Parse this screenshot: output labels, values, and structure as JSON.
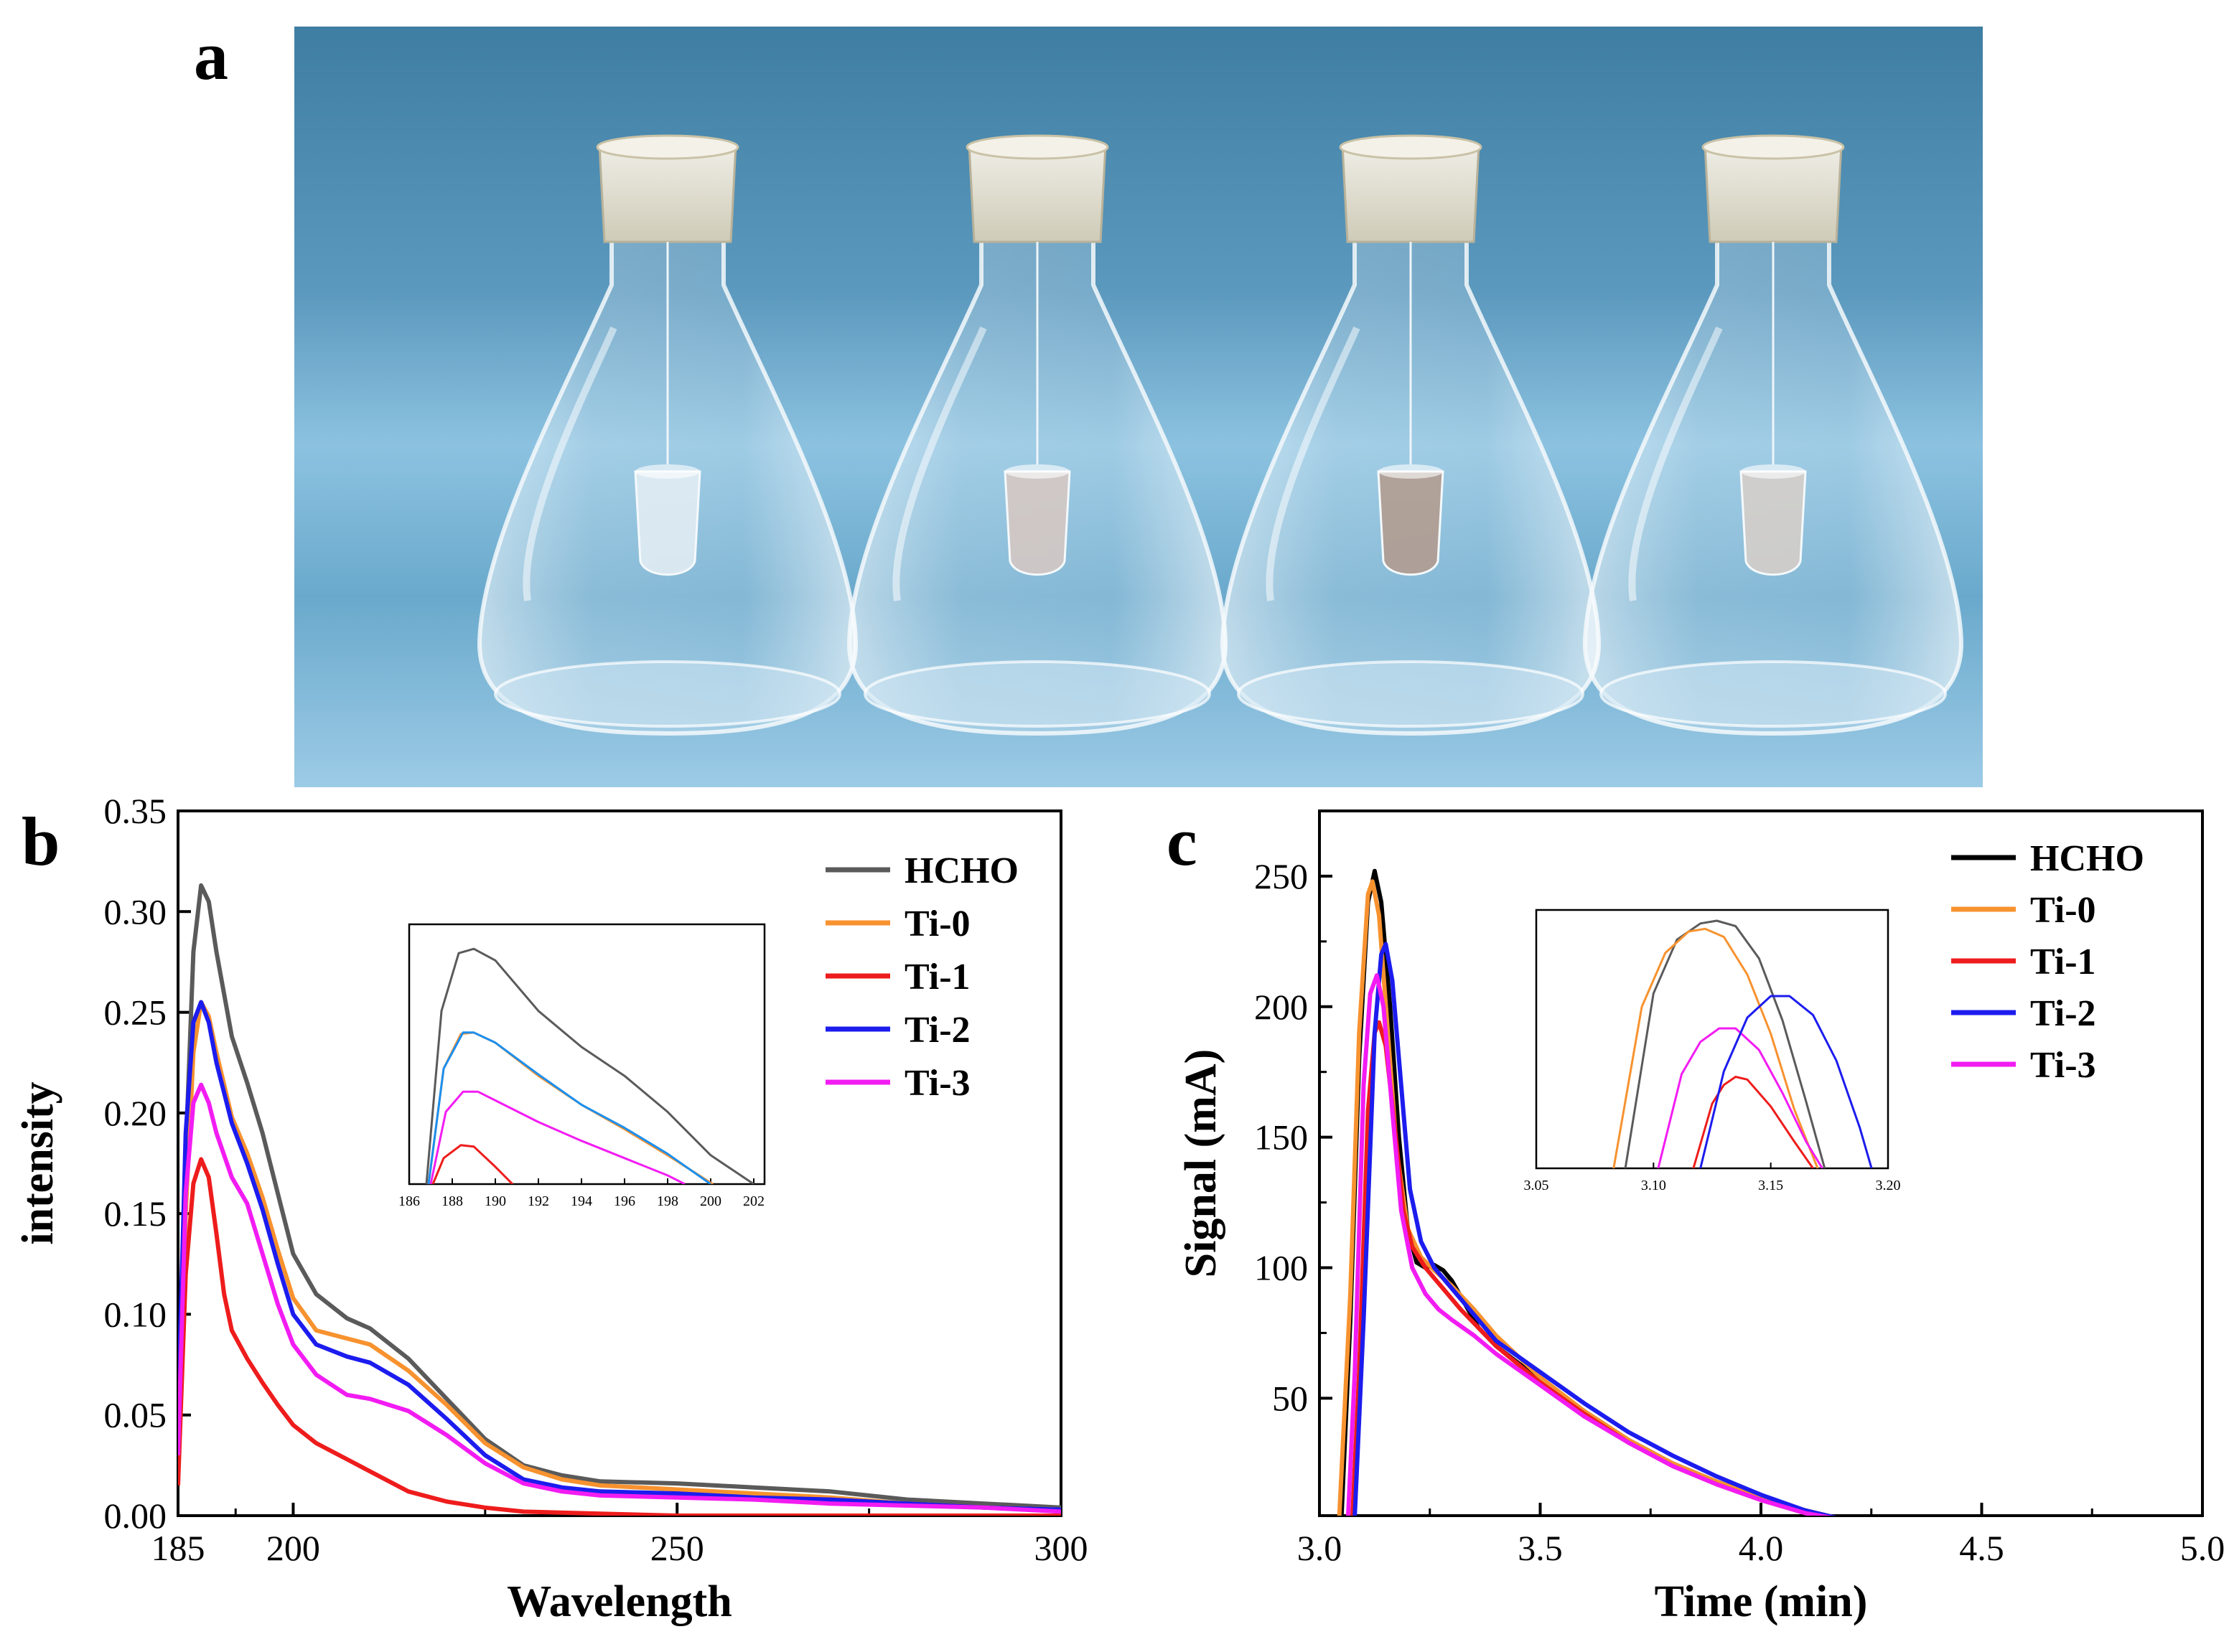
{
  "panels": {
    "a_label": "a",
    "b_label": "b",
    "c_label": "c"
  },
  "photo": {
    "flask_count": 4,
    "colors": {
      "bg_top": "#3f7ea3",
      "bg_mid": "#6aa9cc",
      "bg_bottom": "#9ccbe6",
      "glass": "#e8f2f8"
    }
  },
  "chart_data": [
    {
      "id": "b",
      "type": "line",
      "title": "",
      "xlabel": "Wavelength",
      "ylabel": "intensity",
      "xlim": [
        185,
        300
      ],
      "ylim": [
        0,
        0.35
      ],
      "xticks": [
        185,
        200,
        250,
        300
      ],
      "xtick_labels": [
        "185",
        "200",
        "250",
        "300"
      ],
      "yticks": [
        0.0,
        0.05,
        0.1,
        0.15,
        0.2,
        0.25,
        0.3,
        0.35
      ],
      "ytick_labels": [
        "0.00",
        "0.05",
        "0.10",
        "0.15",
        "0.20",
        "0.25",
        "0.30",
        "0.35"
      ],
      "legend": "top-right",
      "series": [
        {
          "name": "HCHO",
          "color": "#5a5a5a",
          "x": [
            185,
            186,
            187,
            188,
            189,
            190,
            192,
            194,
            196,
            198,
            200,
            203,
            207,
            210,
            215,
            220,
            225,
            230,
            235,
            240,
            250,
            260,
            270,
            280,
            290,
            300
          ],
          "y": [
            0.02,
            0.18,
            0.28,
            0.313,
            0.305,
            0.28,
            0.238,
            0.215,
            0.19,
            0.16,
            0.13,
            0.11,
            0.098,
            0.093,
            0.078,
            0.058,
            0.038,
            0.025,
            0.02,
            0.017,
            0.016,
            0.014,
            0.012,
            0.008,
            0.006,
            0.004
          ]
        },
        {
          "name": "Ti-0",
          "color": "#f7922f",
          "x": [
            185,
            186,
            187,
            188,
            189,
            190,
            192,
            194,
            196,
            198,
            200,
            203,
            207,
            210,
            215,
            220,
            225,
            230,
            235,
            240,
            250,
            260,
            270,
            280,
            290,
            300
          ],
          "y": [
            0.02,
            0.15,
            0.23,
            0.255,
            0.248,
            0.23,
            0.198,
            0.18,
            0.158,
            0.132,
            0.108,
            0.092,
            0.088,
            0.085,
            0.072,
            0.055,
            0.036,
            0.024,
            0.018,
            0.015,
            0.013,
            0.011,
            0.009,
            0.006,
            0.004,
            0.003
          ]
        },
        {
          "name": "Ti-1",
          "color": "#ee1c1c",
          "x": [
            185,
            186,
            187,
            188,
            189,
            190,
            191,
            192,
            194,
            196,
            198,
            200,
            203,
            207,
            210,
            215,
            220,
            225,
            230,
            240,
            250,
            260,
            300
          ],
          "y": [
            0.015,
            0.12,
            0.165,
            0.177,
            0.168,
            0.14,
            0.11,
            0.092,
            0.078,
            0.066,
            0.055,
            0.045,
            0.036,
            0.028,
            0.022,
            0.012,
            0.007,
            0.004,
            0.002,
            0.001,
            0.0,
            0.0,
            0.0
          ]
        },
        {
          "name": "Ti-2",
          "color": "#1c1cee",
          "x": [
            185,
            186,
            187,
            188,
            189,
            190,
            192,
            194,
            196,
            198,
            200,
            203,
            207,
            210,
            215,
            220,
            225,
            230,
            235,
            240,
            250,
            260,
            270,
            280,
            290,
            300
          ],
          "y": [
            0.05,
            0.19,
            0.245,
            0.255,
            0.245,
            0.225,
            0.195,
            0.175,
            0.152,
            0.125,
            0.1,
            0.085,
            0.079,
            0.076,
            0.065,
            0.048,
            0.03,
            0.018,
            0.014,
            0.012,
            0.011,
            0.009,
            0.008,
            0.006,
            0.004,
            0.003
          ]
        },
        {
          "name": "Ti-3",
          "color": "#f21cf2",
          "x": [
            185,
            186,
            187,
            188,
            189,
            190,
            192,
            194,
            196,
            198,
            200,
            203,
            207,
            210,
            215,
            220,
            225,
            230,
            235,
            240,
            250,
            260,
            270,
            280,
            290,
            300
          ],
          "y": [
            0.03,
            0.16,
            0.205,
            0.214,
            0.205,
            0.19,
            0.168,
            0.155,
            0.13,
            0.105,
            0.085,
            0.07,
            0.06,
            0.058,
            0.052,
            0.04,
            0.026,
            0.016,
            0.012,
            0.01,
            0.009,
            0.008,
            0.006,
            0.005,
            0.004,
            0.002
          ]
        }
      ],
      "inset": {
        "xlim": [
          186,
          202.5
        ],
        "ylim": [
          0.15,
          0.33
        ],
        "xticks": [
          186,
          188,
          190,
          192,
          194,
          196,
          198,
          200,
          202
        ],
        "xtick_labels": [
          "186",
          "188",
          "190",
          "192",
          "194",
          "196",
          "198",
          "200",
          "202"
        ],
        "series": [
          {
            "name": "HCHO",
            "color": "#5a5a5a",
            "x": [
              186.8,
              187.5,
              188.3,
              189,
              190,
              192,
              194,
              196,
              198,
              200,
              202
            ],
            "y": [
              0.15,
              0.27,
              0.31,
              0.313,
              0.305,
              0.27,
              0.245,
              0.225,
              0.2,
              0.17,
              0.15
            ]
          },
          {
            "name": "Ti-0",
            "color": "#f7922f",
            "x": [
              186.9,
              187.6,
              188.4,
              189,
              190,
              192,
              194,
              196,
              198,
              200.1
            ],
            "y": [
              0.15,
              0.23,
              0.254,
              0.255,
              0.248,
              0.225,
              0.205,
              0.188,
              0.17,
              0.15
            ]
          },
          {
            "name": "Ti-2",
            "color": "#1c8fee",
            "x": [
              186.9,
              187.6,
              188.5,
              189,
              190,
              192,
              194,
              196,
              198,
              200
            ],
            "y": [
              0.15,
              0.23,
              0.255,
              0.255,
              0.248,
              0.226,
              0.205,
              0.189,
              0.171,
              0.15
            ]
          },
          {
            "name": "Ti-3",
            "color": "#f21cf2",
            "x": [
              187,
              187.7,
              188.5,
              189.2,
              190,
              192,
              194,
              196,
              198,
              198.8
            ],
            "y": [
              0.15,
              0.2,
              0.214,
              0.214,
              0.208,
              0.193,
              0.18,
              0.168,
              0.156,
              0.15
            ]
          },
          {
            "name": "Ti-1",
            "color": "#ee1c1c",
            "x": [
              187.1,
              187.6,
              188.4,
              189,
              190,
              190.8
            ],
            "y": [
              0.15,
              0.168,
              0.177,
              0.176,
              0.162,
              0.15
            ]
          }
        ]
      }
    },
    {
      "id": "c",
      "type": "line",
      "title": "",
      "xlabel": "Time (min)",
      "ylabel": "Signal (mA)",
      "xlim": [
        3.0,
        5.0
      ],
      "ylim": [
        5,
        275
      ],
      "xticks": [
        3.0,
        3.5,
        4.0,
        4.5,
        5.0
      ],
      "xtick_labels": [
        "3.0",
        "3.5",
        "4.0",
        "4.5",
        "5.0"
      ],
      "yticks": [
        50,
        100,
        150,
        200,
        250
      ],
      "ytick_labels": [
        "50",
        "100",
        "150",
        "200",
        "250"
      ],
      "legend": "top-right",
      "series": [
        {
          "name": "HCHO",
          "color": "#000000",
          "x": [
            3.05,
            3.07,
            3.09,
            3.11,
            3.125,
            3.14,
            3.16,
            3.18,
            3.2,
            3.22,
            3.24,
            3.26,
            3.28,
            3.3,
            3.33,
            3.36,
            3.4,
            3.5,
            3.6,
            3.7,
            3.8,
            3.9,
            4.0,
            4.1,
            4.2,
            4.25
          ],
          "y": [
            5,
            80,
            180,
            240,
            252,
            240,
            200,
            150,
            115,
            102,
            100,
            101,
            99,
            95,
            86,
            77,
            70,
            57,
            45,
            34,
            25,
            18,
            12,
            7,
            3,
            2
          ]
        },
        {
          "name": "Ti-0",
          "color": "#f7922f",
          "x": [
            3.045,
            3.07,
            3.09,
            3.11,
            3.12,
            3.135,
            3.155,
            3.175,
            3.2,
            3.23,
            3.26,
            3.3,
            3.35,
            3.4,
            3.5,
            3.6,
            3.7,
            3.8,
            3.9,
            4.0,
            4.1,
            4.2,
            4.25
          ],
          "y": [
            5,
            90,
            190,
            243,
            248,
            235,
            190,
            145,
            115,
            104,
            99,
            93,
            84,
            74,
            58,
            45,
            34,
            25,
            18,
            12,
            7,
            3,
            2
          ]
        },
        {
          "name": "Ti-1",
          "color": "#ee1c1c",
          "x": [
            3.075,
            3.09,
            3.11,
            3.125,
            3.135,
            3.15,
            3.17,
            3.19,
            3.21,
            3.24,
            3.28,
            3.32,
            3.4,
            3.5,
            3.6,
            3.7,
            3.8,
            3.9,
            4.0,
            4.1,
            4.2,
            4.25
          ],
          "y": [
            5,
            60,
            160,
            190,
            194,
            185,
            155,
            122,
            108,
            100,
            92,
            84,
            70,
            56,
            44,
            33,
            24,
            17,
            11,
            6,
            3,
            2
          ]
        },
        {
          "name": "Ti-2",
          "color": "#1c1cee",
          "x": [
            3.08,
            3.1,
            3.125,
            3.14,
            3.15,
            3.165,
            3.185,
            3.205,
            3.23,
            3.26,
            3.3,
            3.35,
            3.4,
            3.5,
            3.6,
            3.7,
            3.8,
            3.9,
            4.0,
            4.1,
            4.2,
            4.28
          ],
          "y": [
            5,
            80,
            190,
            220,
            224,
            210,
            170,
            130,
            110,
            100,
            92,
            82,
            72,
            60,
            48,
            37,
            28,
            20,
            13,
            7,
            3,
            1
          ]
        },
        {
          "name": "Ti-3",
          "color": "#f21cf2",
          "x": [
            3.065,
            3.08,
            3.1,
            3.115,
            3.13,
            3.145,
            3.165,
            3.185,
            3.21,
            3.24,
            3.27,
            3.3,
            3.35,
            3.4,
            3.5,
            3.6,
            3.7,
            3.8,
            3.9,
            4.0,
            4.1,
            4.2,
            4.25
          ],
          "y": [
            5,
            60,
            170,
            205,
            212,
            200,
            160,
            122,
            100,
            90,
            84,
            80,
            74,
            67,
            55,
            43,
            33,
            24,
            17,
            11,
            6,
            3,
            2
          ]
        }
      ],
      "inset": {
        "xlim": [
          3.05,
          3.2
        ],
        "ylim": [
          160,
          256
        ],
        "xticks": [
          3.05,
          3.1,
          3.15,
          3.2
        ],
        "xtick_labels": [
          "3.05",
          "3.10",
          "3.15",
          "3.20"
        ],
        "series": [
          {
            "name": "HCHO",
            "color": "#5a5a5a",
            "x": [
              3.088,
              3.1,
              3.11,
              3.12,
              3.127,
              3.135,
              3.145,
              3.155,
              3.165,
              3.173
            ],
            "y": [
              160,
              225,
              245,
              251,
              252,
              250,
              238,
              215,
              185,
              160
            ]
          },
          {
            "name": "Ti-0",
            "color": "#f7922f",
            "x": [
              3.083,
              3.095,
              3.105,
              3.115,
              3.122,
              3.13,
              3.14,
              3.15,
              3.16,
              3.17
            ],
            "y": [
              160,
              220,
              240,
              248,
              249,
              246,
              232,
              210,
              182,
              160
            ]
          },
          {
            "name": "Ti-1",
            "color": "#ee1c1c",
            "x": [
              3.117,
              3.125,
              3.13,
              3.135,
              3.14,
              3.15,
              3.16,
              3.168
            ],
            "y": [
              160,
              184,
              191,
              194,
              193,
              183,
              170,
              160
            ]
          },
          {
            "name": "Ti-3",
            "color": "#f21cf2",
            "x": [
              3.102,
              3.112,
              3.12,
              3.128,
              3.135,
              3.145,
              3.155,
              3.165,
              3.172
            ],
            "y": [
              160,
              195,
              207,
              212,
              212,
              204,
              188,
              170,
              160
            ]
          },
          {
            "name": "Ti-2",
            "color": "#1c1cee",
            "x": [
              3.12,
              3.13,
              3.14,
              3.15,
              3.158,
              3.168,
              3.178,
              3.188,
              3.193
            ],
            "y": [
              160,
              196,
              216,
              224,
              224,
              217,
              200,
              175,
              160
            ]
          }
        ]
      }
    }
  ]
}
